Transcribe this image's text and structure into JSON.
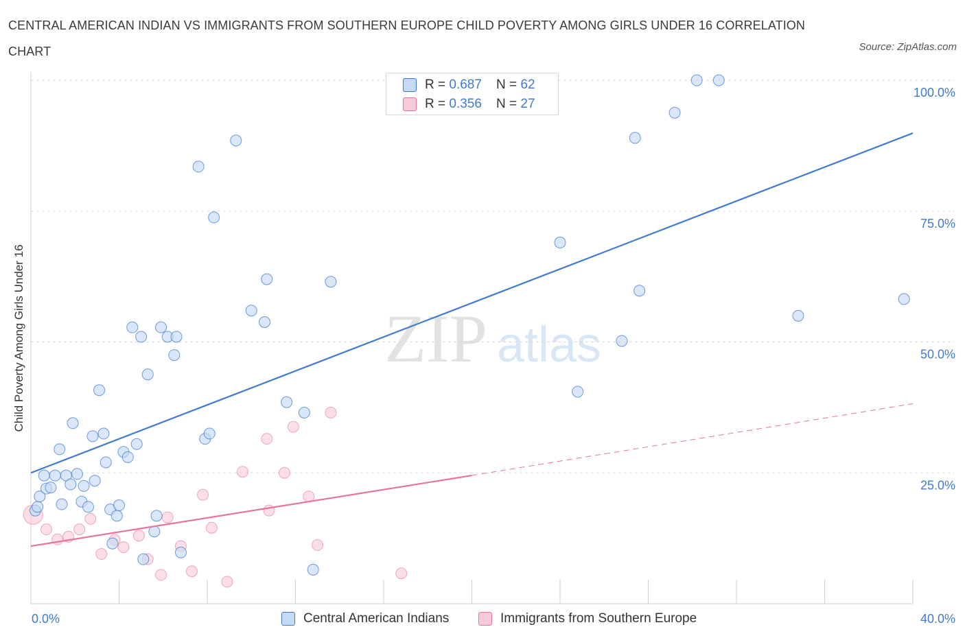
{
  "title": "CENTRAL AMERICAN INDIAN VS IMMIGRANTS FROM SOUTHERN EUROPE CHILD POVERTY AMONG GIRLS UNDER 16 CORRELATION CHART",
  "source": "Source: ZipAtlas.com",
  "watermark": {
    "zip": "ZIP",
    "atlas": "atlas"
  },
  "colors": {
    "blue": "#3f7ad0",
    "blue_fill": "#c5daf6",
    "pink": "#e8729a",
    "pink_fill": "#f8c9d7",
    "grid": "#d9d9d9",
    "axis_text": "#3f7ad0"
  },
  "stats": [
    {
      "r_label": "R = ",
      "r_value": "0.687",
      "n_label": "N = ",
      "n_value": "62"
    },
    {
      "r_label": "R = ",
      "r_value": "0.356",
      "n_label": "N = ",
      "n_value": "27"
    }
  ],
  "legend": [
    {
      "label": "Central American Indians"
    },
    {
      "label": "Immigrants from Southern Europe"
    }
  ],
  "chart_data": {
    "type": "scatter",
    "title": "CENTRAL AMERICAN INDIAN VS IMMIGRANTS FROM SOUTHERN EUROPE CHILD POVERTY AMONG GIRLS UNDER 16 CORRELATION CHART",
    "xlabel": "",
    "ylabel": "Child Poverty Among Girls Under 16",
    "xlim": [
      0,
      40
    ],
    "ylim": [
      0,
      100
    ],
    "x_tick_labels": [
      "0.0%",
      "40.0%"
    ],
    "y_tick_labels": [
      "25.0%",
      "50.0%",
      "75.0%",
      "100.0%"
    ],
    "y_ticks": [
      25,
      50,
      75,
      100
    ],
    "grid": true,
    "legend_position": "bottom",
    "series": [
      {
        "name": "Central American Indians",
        "color": "#3f7ad0",
        "trend": {
          "x": [
            0,
            40
          ],
          "y": [
            25.0,
            89.9
          ]
        },
        "points": [
          [
            0.2,
            17.8
          ],
          [
            0.3,
            18.5
          ],
          [
            0.4,
            20.5
          ],
          [
            0.6,
            24.5
          ],
          [
            0.7,
            22.0
          ],
          [
            0.9,
            22.2
          ],
          [
            1.1,
            24.5
          ],
          [
            1.3,
            29.5
          ],
          [
            1.4,
            19.0
          ],
          [
            1.6,
            24.5
          ],
          [
            1.8,
            22.8
          ],
          [
            1.9,
            34.5
          ],
          [
            2.1,
            24.8
          ],
          [
            2.3,
            19.5
          ],
          [
            2.4,
            22.5
          ],
          [
            2.6,
            18.5
          ],
          [
            2.8,
            32.0
          ],
          [
            2.9,
            23.5
          ],
          [
            3.1,
            40.8
          ],
          [
            3.3,
            32.5
          ],
          [
            3.4,
            27.0
          ],
          [
            3.6,
            18.0
          ],
          [
            3.7,
            11.5
          ],
          [
            3.9,
            16.8
          ],
          [
            4.0,
            18.8
          ],
          [
            4.2,
            29.0
          ],
          [
            4.4,
            28.0
          ],
          [
            4.6,
            52.8
          ],
          [
            4.8,
            30.5
          ],
          [
            5.0,
            51.0
          ],
          [
            5.1,
            8.5
          ],
          [
            5.3,
            43.8
          ],
          [
            5.6,
            13.8
          ],
          [
            5.7,
            16.8
          ],
          [
            5.9,
            52.8
          ],
          [
            6.2,
            51.0
          ],
          [
            6.5,
            47.5
          ],
          [
            6.6,
            51.0
          ],
          [
            6.8,
            9.8
          ],
          [
            7.6,
            83.5
          ],
          [
            7.9,
            31.5
          ],
          [
            8.1,
            32.5
          ],
          [
            8.3,
            73.8
          ],
          [
            9.3,
            88.5
          ],
          [
            10.0,
            56.0
          ],
          [
            10.6,
            53.8
          ],
          [
            10.7,
            62.0
          ],
          [
            11.6,
            38.5
          ],
          [
            12.4,
            36.5
          ],
          [
            12.8,
            6.5
          ],
          [
            13.6,
            61.5
          ],
          [
            17.6,
            100.0
          ],
          [
            24.0,
            69.0
          ],
          [
            24.8,
            40.5
          ],
          [
            26.8,
            50.2
          ],
          [
            27.4,
            89.0
          ],
          [
            27.6,
            59.8
          ],
          [
            29.2,
            93.8
          ],
          [
            30.2,
            100.0
          ],
          [
            31.2,
            100.0
          ],
          [
            34.8,
            55.0
          ],
          [
            39.6,
            58.2
          ]
        ]
      },
      {
        "name": "Immigrants from Southern Europe",
        "color": "#e8729a",
        "trend": {
          "x": [
            0,
            20
          ],
          "y": [
            11.0,
            24.5
          ]
        },
        "trend_extension": {
          "x": [
            20,
            40
          ],
          "y": [
            24.5,
            38.2
          ]
        },
        "points": [
          [
            0.1,
            17.0
          ],
          [
            0.7,
            14.2
          ],
          [
            1.2,
            12.3
          ],
          [
            1.7,
            12.8
          ],
          [
            2.2,
            14.2
          ],
          [
            2.7,
            16.2
          ],
          [
            3.2,
            9.5
          ],
          [
            3.8,
            12.2
          ],
          [
            4.2,
            10.8
          ],
          [
            4.9,
            13.0
          ],
          [
            5.3,
            8.5
          ],
          [
            5.9,
            5.5
          ],
          [
            6.2,
            16.5
          ],
          [
            6.8,
            11.0
          ],
          [
            7.3,
            6.2
          ],
          [
            7.8,
            20.8
          ],
          [
            8.2,
            14.5
          ],
          [
            8.9,
            4.2
          ],
          [
            9.6,
            25.2
          ],
          [
            10.7,
            31.5
          ],
          [
            10.8,
            17.8
          ],
          [
            11.5,
            25.0
          ],
          [
            11.9,
            33.8
          ],
          [
            12.6,
            20.5
          ],
          [
            13.0,
            11.2
          ],
          [
            13.6,
            36.5
          ],
          [
            16.8,
            5.8
          ]
        ]
      }
    ]
  }
}
